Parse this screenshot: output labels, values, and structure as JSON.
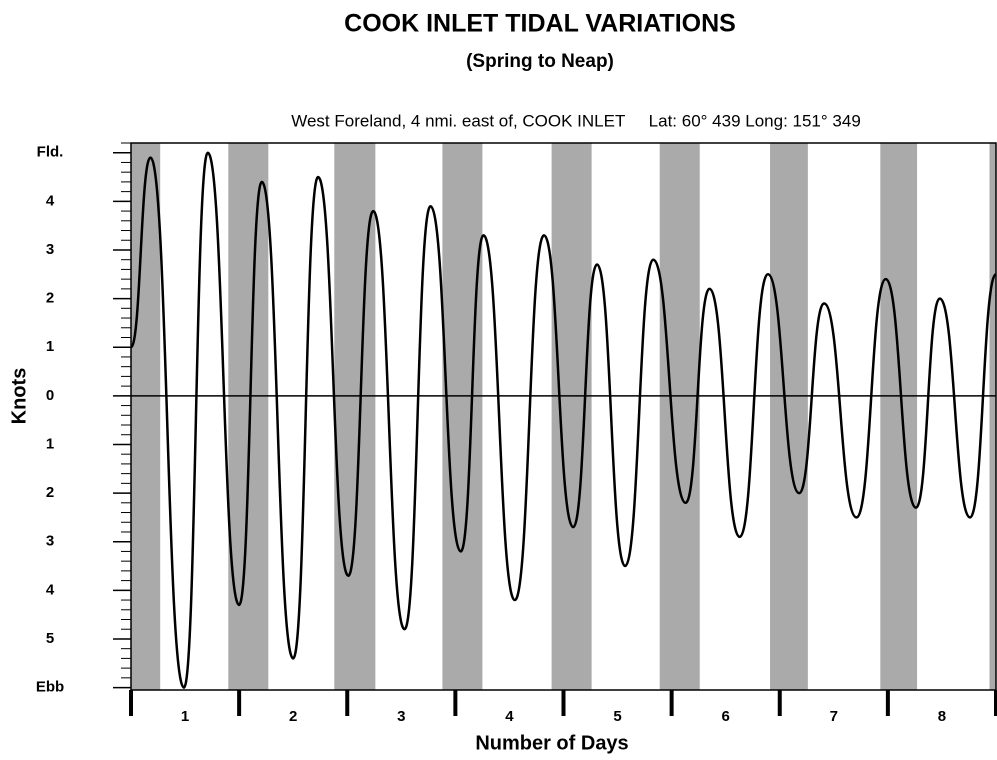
{
  "chart_data": {
    "type": "line",
    "title": "COOK INLET TIDAL VARIATIONS",
    "subtitle": "(Spring to Neap)",
    "annotation": "West Foreland, 4 nmi. east of, COOK INLET     Lat: 60° 439 Long: 151° 349",
    "ylabel": "Knots",
    "xlabel": "Number of Days",
    "xlim": [
      0,
      8
    ],
    "ylim": [
      -6.05,
      5.2
    ],
    "yticks": [
      {
        "value": 5,
        "label": "Fld."
      },
      4,
      3,
      2,
      1,
      0,
      {
        "value": -1,
        "label": "1"
      },
      {
        "value": -2,
        "label": "2"
      },
      {
        "value": -3,
        "label": "3"
      },
      {
        "value": -4,
        "label": "4"
      },
      {
        "value": -5,
        "label": "5"
      },
      {
        "value": -6,
        "label": "Ebb"
      }
    ],
    "minor_ytick_step": 0.2,
    "day_boundaries": [
      0,
      1,
      2,
      3,
      4,
      5,
      6,
      7,
      8
    ],
    "xticks": [
      {
        "value": 0.5,
        "label": "1"
      },
      {
        "value": 1.5,
        "label": "2"
      },
      {
        "value": 2.5,
        "label": "3"
      },
      {
        "value": 3.5,
        "label": "4"
      },
      {
        "value": 4.5,
        "label": "5"
      },
      {
        "value": 5.5,
        "label": "6"
      },
      {
        "value": 6.5,
        "label": "7"
      },
      {
        "value": 7.5,
        "label": "8"
      }
    ],
    "shaded_bands": [
      [
        0,
        0.27
      ],
      [
        0.9,
        1.27
      ],
      [
        1.88,
        2.26
      ],
      [
        2.88,
        3.25
      ],
      [
        3.89,
        4.26
      ],
      [
        4.89,
        5.26
      ],
      [
        5.91,
        6.26
      ],
      [
        6.93,
        7.27
      ],
      [
        7.94,
        8
      ]
    ],
    "shade_color": "#aaaaaa",
    "zero_line": 0,
    "series": [
      {
        "color": "#000000",
        "x": [
          0,
          0.18,
          0.49,
          0.71,
          1.0,
          1.21,
          1.5,
          1.73,
          2.01,
          2.24,
          2.53,
          2.77,
          3.05,
          3.26,
          3.55,
          3.82,
          4.09,
          4.31,
          4.57,
          4.83,
          5.13,
          5.35,
          5.63,
          5.89,
          6.18,
          6.41,
          6.71,
          6.98,
          7.26,
          7.48,
          7.76,
          8.0
        ],
        "values": [
          1.0,
          4.9,
          -6.0,
          5.0,
          -4.3,
          4.4,
          -5.4,
          4.5,
          -3.7,
          3.8,
          -4.8,
          3.9,
          -3.2,
          3.3,
          -4.2,
          3.3,
          -2.7,
          2.7,
          -3.5,
          2.8,
          -2.2,
          2.2,
          -2.9,
          2.5,
          -2.0,
          1.9,
          -2.5,
          2.4,
          -2.3,
          2.0,
          -2.5,
          2.5
        ]
      }
    ]
  }
}
